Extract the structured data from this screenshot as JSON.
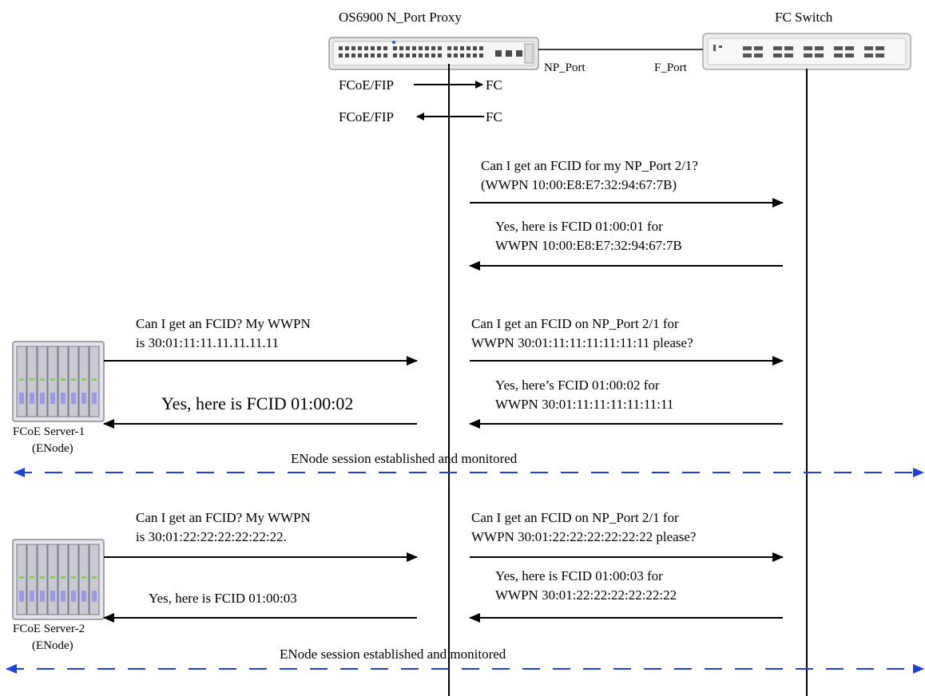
{
  "nodes": {
    "proxy_label": "OS6900 N_Port Proxy",
    "fc_switch_label": "FC Switch",
    "np_port_label": "NP_Port",
    "f_port_label": "F_Port",
    "server1_name": "FCoE Server-1",
    "server1_role": "(ENode)",
    "server2_name": "FCoE Server-2",
    "server2_role": "(ENode)"
  },
  "legend": {
    "row1_left": "FCoE/FIP",
    "row1_right": "FC",
    "row2_left": "FCoE/FIP",
    "row2_right": "FC"
  },
  "messages": {
    "m1_line1": "Can I get an FCID for my NP_Port 2/1?",
    "m1_line2": "(WWPN 10:00:E8:E7:32:94:67:7B)",
    "m2_line1": "Yes, here is FCID 01:00:01 for",
    "m2_line2": "WWPN 10:00:E8:E7:32:94:67:7B",
    "s1_req_line1": "Can I get an FCID? My WWPN",
    "s1_req_line2": "is 30:01:11:11.11.11.11.11",
    "s1_fwd_line1": "Can I get an FCID on NP_Port 2/1 for",
    "s1_fwd_line2": "WWPN 30:01:11:11:11:11:11:11 please?",
    "s1_rep_line1": "Yes, here’s FCID 01:00:02 for",
    "s1_rep_line2": "WWPN 30:01:11:11:11:11:11:11",
    "s1_answer": "Yes, here is FCID 01:00:02",
    "session1": "ENode session established and monitored",
    "s2_req_line1": "Can I get an FCID? My WWPN",
    "s2_req_line2": "is 30:01:22:22:22:22:22:22.",
    "s2_fwd_line1": "Can I get an FCID on NP_Port 2/1 for",
    "s2_fwd_line2": "WWPN 30:01:22:22:22:22:22:22 please?",
    "s2_rep_line1": "Yes, here is FCID 01:00:03 for",
    "s2_rep_line2": "WWPN 30:01:22:22:22:22:22:22",
    "s2_answer": "Yes, here is FCID 01:00:03",
    "session2": "ENode session established and monitored"
  },
  "colors": {
    "session_line": "#1f3fd6",
    "arrow": "#000000"
  }
}
